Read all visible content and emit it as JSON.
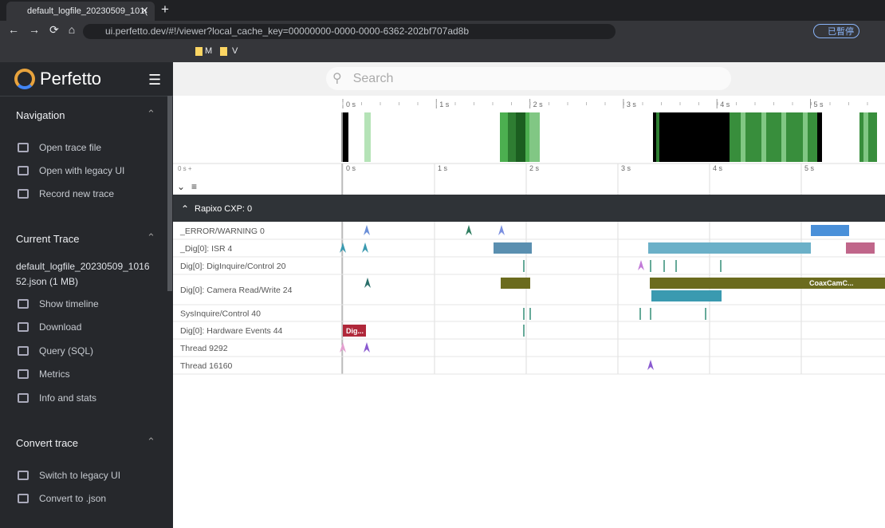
{
  "browser": {
    "tab_title": "default_logfile_20230509_101(",
    "url": "ui.perfetto.dev/#!/viewer?local_cache_key=00000000-0000-0000-6362-202bf707ad8b",
    "bookmarks": [
      "M",
      "V"
    ],
    "profile": "已暫停"
  },
  "sidebar": {
    "app_name": "Perfetto",
    "sections": [
      {
        "title": "Navigation",
        "items": [
          "Open trace file",
          "Open with legacy UI",
          "Record new trace"
        ]
      },
      {
        "title": "Current Trace",
        "subtitle": "default_logfile_20230509_101652.json (1 MB)",
        "items": [
          "Show timeline",
          "Download",
          "Query (SQL)",
          "Metrics",
          "Info and stats"
        ]
      },
      {
        "title": "Convert trace",
        "items": [
          "Switch to legacy UI",
          "Convert to .json"
        ]
      }
    ]
  },
  "search": {
    "placeholder": "Search"
  },
  "timeline": {
    "overview_ticks": [
      "0 s",
      "1 s",
      "2 s",
      "3 s",
      "4 s",
      "5 s"
    ],
    "axis_offset": "0 s +",
    "axis_ticks": [
      "0 s",
      "1 s",
      "2 s",
      "3 s",
      "4 s",
      "5 s"
    ],
    "group": "Rapixo CXP: 0",
    "tracks": [
      "_ERROR/WARNING 0",
      "_Dig[0]: ISR 4",
      "Dig[0]: DigInquire/Control 20",
      "Dig[0]: Camera Read/Write 24",
      "SysInquire/Control 40",
      "Dig[0]: Hardware Events 44",
      "Thread 9292",
      "Thread 16160"
    ],
    "slice_labels": [
      "Dig...",
      "CoaxCamC..."
    ]
  }
}
